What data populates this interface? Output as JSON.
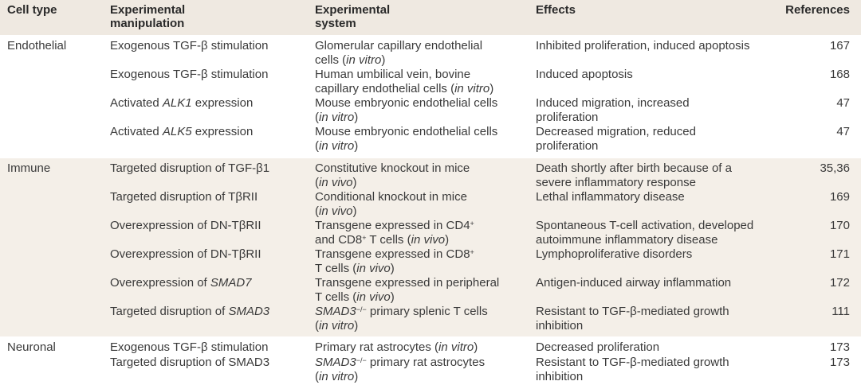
{
  "headers": [
    "Cell type",
    "Experimental\nmanipulation",
    "Experimental\nsystem",
    "Effects",
    "References"
  ],
  "sections": [
    {
      "cell_type": "Endothelial",
      "rows": [
        {
          "manipulation": [
            {
              "t": "Exogenous TGF-β stimulation"
            }
          ],
          "system": [
            {
              "t": "Glomerular capillary endothelial\ncells ("
            },
            {
              "t": "in vitro",
              "s": "i"
            },
            {
              "t": ")"
            }
          ],
          "effects": [
            {
              "t": "Inhibited proliferation, induced apoptosis"
            }
          ],
          "ref": "167"
        },
        {
          "manipulation": [
            {
              "t": "Exogenous TGF-β stimulation"
            }
          ],
          "system": [
            {
              "t": "Human umbilical vein, bovine\ncapillary endothelial cells ("
            },
            {
              "t": "in vitro",
              "s": "i"
            },
            {
              "t": ")"
            }
          ],
          "effects": [
            {
              "t": "Induced apoptosis"
            }
          ],
          "ref": "168"
        },
        {
          "manipulation": [
            {
              "t": "Activated "
            },
            {
              "t": "ALK1",
              "s": "i"
            },
            {
              "t": " expression"
            }
          ],
          "system": [
            {
              "t": "Mouse embryonic endothelial cells\n("
            },
            {
              "t": "in vitro",
              "s": "i"
            },
            {
              "t": ")"
            }
          ],
          "effects": [
            {
              "t": "Induced migration, increased proliferation"
            }
          ],
          "ref": "47"
        },
        {
          "manipulation": [
            {
              "t": "Activated "
            },
            {
              "t": "ALK5",
              "s": "i"
            },
            {
              "t": " expression"
            }
          ],
          "system": [
            {
              "t": "Mouse embryonic endothelial cells\n("
            },
            {
              "t": "in vitro",
              "s": "i"
            },
            {
              "t": ")"
            }
          ],
          "effects": [
            {
              "t": "Decreased migration, reduced\nproliferation"
            }
          ],
          "ref": "47"
        }
      ]
    },
    {
      "cell_type": "Immune",
      "rows": [
        {
          "manipulation": [
            {
              "t": "Targeted disruption of TGF-β1"
            }
          ],
          "system": [
            {
              "t": "Constitutive knockout in mice\n("
            },
            {
              "t": "in vivo",
              "s": "i"
            },
            {
              "t": ")"
            }
          ],
          "effects": [
            {
              "t": "Death shortly after birth because of a\nsevere inflammatory response"
            }
          ],
          "ref": "35,36"
        },
        {
          "manipulation": [
            {
              "t": "Targeted disruption of TβRII"
            }
          ],
          "system": [
            {
              "t": "Conditional knockout in mice\n("
            },
            {
              "t": "in vivo",
              "s": "i"
            },
            {
              "t": ")"
            }
          ],
          "effects": [
            {
              "t": "Lethal inflammatory disease"
            }
          ],
          "ref": "169"
        },
        {
          "manipulation": [
            {
              "t": "Overexpression of DN-TβRII"
            }
          ],
          "system": [
            {
              "t": "Transgene expressed in CD4"
            },
            {
              "t": "+",
              "s": "sup"
            },
            {
              "t": "\nand CD8"
            },
            {
              "t": "+",
              "s": "sup"
            },
            {
              "t": " T cells ("
            },
            {
              "t": "in vivo",
              "s": "i"
            },
            {
              "t": ")"
            }
          ],
          "effects": [
            {
              "t": "Spontaneous T-cell activation, developed\nautoimmune inflammatory disease"
            }
          ],
          "ref": "170"
        },
        {
          "manipulation": [
            {
              "t": "Overexpression of DN-TβRII"
            }
          ],
          "system": [
            {
              "t": "Transgene expressed in CD8"
            },
            {
              "t": "+",
              "s": "sup"
            },
            {
              "t": "\nT cells ("
            },
            {
              "t": "in vivo",
              "s": "i"
            },
            {
              "t": ")"
            }
          ],
          "effects": [
            {
              "t": "Lymphoproliferative disorders"
            }
          ],
          "ref": "171"
        },
        {
          "manipulation": [
            {
              "t": "Overexpression of "
            },
            {
              "t": "SMAD7",
              "s": "i"
            }
          ],
          "system": [
            {
              "t": "Transgene expressed in peripheral\nT cells ("
            },
            {
              "t": "in vivo",
              "s": "i"
            },
            {
              "t": ")"
            }
          ],
          "effects": [
            {
              "t": "Antigen-induced airway inflammation"
            }
          ],
          "ref": "172"
        },
        {
          "manipulation": [
            {
              "t": "Targeted disruption of "
            },
            {
              "t": "SMAD3",
              "s": "i"
            }
          ],
          "system": [
            {
              "t": "SMAD3",
              "s": "i"
            },
            {
              "t": "−/−",
              "s": "sup"
            },
            {
              "t": " primary splenic T cells\n("
            },
            {
              "t": "in vitro",
              "s": "i"
            },
            {
              "t": ")"
            }
          ],
          "effects": [
            {
              "t": "Resistant to TGF-β-mediated growth\ninhibition"
            }
          ],
          "ref": "111"
        }
      ]
    },
    {
      "cell_type": "Neuronal",
      "rows": [
        {
          "manipulation": [
            {
              "t": "Exogenous TGF-β stimulation"
            }
          ],
          "system": [
            {
              "t": "Primary rat astrocytes ("
            },
            {
              "t": "in vitro",
              "s": "i"
            },
            {
              "t": ")"
            }
          ],
          "effects": [
            {
              "t": "Decreased proliferation"
            }
          ],
          "ref": "173"
        },
        {
          "manipulation": [
            {
              "t": "Targeted disruption of SMAD3"
            }
          ],
          "system": [
            {
              "t": "SMAD3",
              "s": "i"
            },
            {
              "t": "−/−",
              "s": "sup"
            },
            {
              "t": " primary rat astrocytes\n("
            },
            {
              "t": "in vitro",
              "s": "i"
            },
            {
              "t": ")"
            }
          ],
          "effects": [
            {
              "t": "Resistant to TGF-β-mediated growth\ninhibition"
            }
          ],
          "ref": "173"
        }
      ]
    }
  ],
  "colors": {
    "header_bg": "#efe9e1",
    "band_bg": "#f4efe8",
    "text": "#3a3a3a"
  }
}
